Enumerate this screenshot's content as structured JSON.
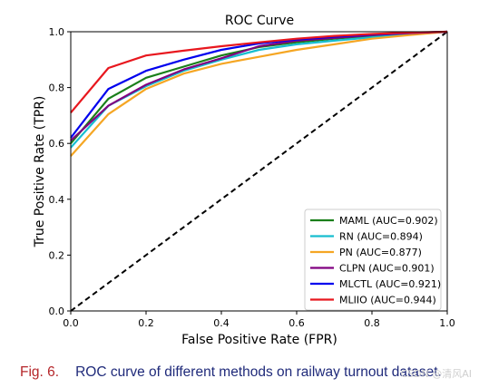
{
  "chart_data": {
    "type": "line",
    "title": "ROC Curve",
    "xlabel": "False Positive Rate (FPR)",
    "ylabel": "True Positive Rate (TPR)",
    "xlim": [
      0,
      1
    ],
    "ylim": [
      0,
      1
    ],
    "xticks": [
      "0.0",
      "0.2",
      "0.4",
      "0.6",
      "0.8",
      "1.0"
    ],
    "yticks": [
      "0.0",
      "0.2",
      "0.4",
      "0.6",
      "0.8",
      "1.0"
    ],
    "grid": false,
    "legend_position": "lower-right",
    "diagonal": {
      "x": [
        0,
        1
      ],
      "y": [
        0,
        1
      ],
      "style": "dashed",
      "color": "#000000"
    },
    "series": [
      {
        "name": "MAML (AUC=0.902)",
        "color": "#1a7f1a",
        "x": [
          0,
          0.1,
          0.2,
          0.3,
          0.4,
          0.5,
          0.6,
          0.7,
          0.8,
          0.9,
          1.0
        ],
        "y": [
          0.6,
          0.76,
          0.835,
          0.875,
          0.915,
          0.945,
          0.962,
          0.975,
          0.985,
          0.993,
          1.0
        ]
      },
      {
        "name": "RN (AUC=0.894)",
        "color": "#17becf",
        "x": [
          0,
          0.1,
          0.2,
          0.3,
          0.4,
          0.5,
          0.6,
          0.7,
          0.8,
          0.9,
          1.0
        ],
        "y": [
          0.585,
          0.735,
          0.805,
          0.86,
          0.9,
          0.935,
          0.955,
          0.968,
          0.98,
          0.99,
          1.0
        ]
      },
      {
        "name": "PN (AUC=0.877)",
        "color": "#f5a623",
        "x": [
          0,
          0.1,
          0.2,
          0.3,
          0.4,
          0.5,
          0.6,
          0.7,
          0.8,
          0.9,
          1.0
        ],
        "y": [
          0.555,
          0.705,
          0.795,
          0.85,
          0.885,
          0.91,
          0.935,
          0.955,
          0.975,
          0.988,
          1.0
        ]
      },
      {
        "name": "CLPN (AUC=0.901)",
        "color": "#800080",
        "x": [
          0,
          0.1,
          0.2,
          0.3,
          0.4,
          0.5,
          0.6,
          0.7,
          0.8,
          0.9,
          1.0
        ],
        "y": [
          0.61,
          0.735,
          0.81,
          0.865,
          0.905,
          0.948,
          0.968,
          0.978,
          0.988,
          0.995,
          1.0
        ]
      },
      {
        "name": "MLCTL (AUC=0.921)",
        "color": "#0000ee",
        "x": [
          0,
          0.1,
          0.2,
          0.3,
          0.4,
          0.5,
          0.6,
          0.7,
          0.8,
          0.9,
          1.0
        ],
        "y": [
          0.62,
          0.795,
          0.86,
          0.9,
          0.935,
          0.958,
          0.972,
          0.982,
          0.99,
          0.996,
          1.0
        ]
      },
      {
        "name": "MLIIO (AUC=0.944)",
        "color": "#e8171e",
        "x": [
          0,
          0.1,
          0.2,
          0.3,
          0.4,
          0.5,
          0.6,
          0.7,
          0.8,
          0.9,
          1.0
        ],
        "y": [
          0.71,
          0.87,
          0.915,
          0.932,
          0.948,
          0.962,
          0.975,
          0.985,
          0.992,
          0.997,
          1.0
        ]
      }
    ]
  },
  "caption": {
    "fig_label": "Fig. 6.",
    "text": "ROC curve of different methods on railway turnout dataset."
  },
  "watermark": "CSDN @清风AI"
}
